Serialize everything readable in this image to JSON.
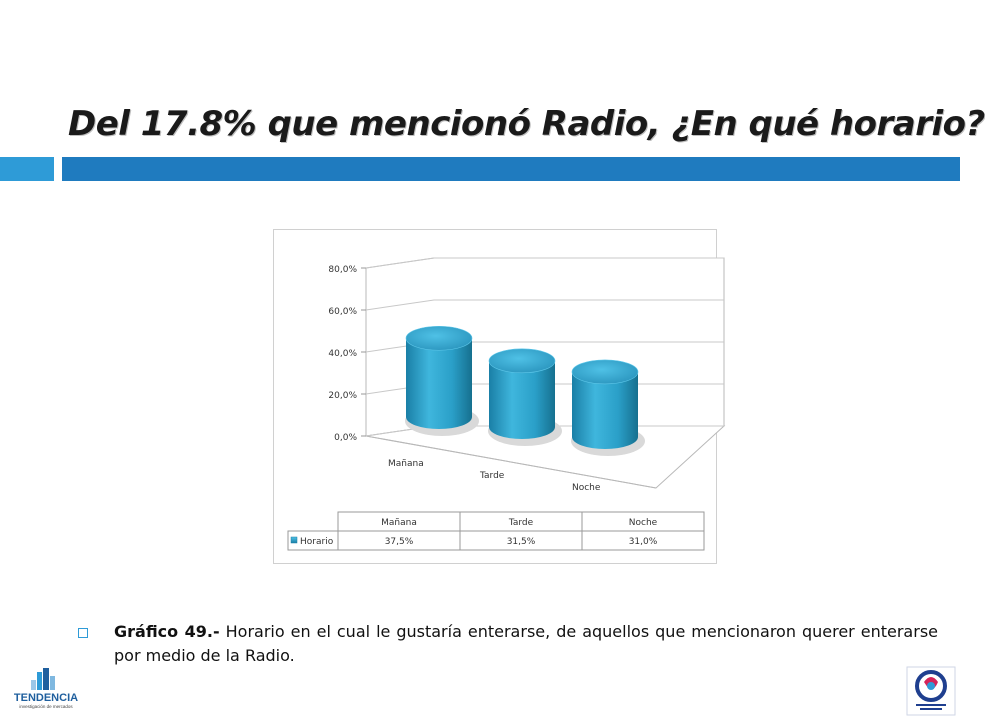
{
  "slide": {
    "title": "Del 17.8% que mencionó Radio, ¿En qué horario?",
    "caption_bold": "Gráfico 49.-",
    "caption_text": " Horario en el cual le gustaría enterarse, de aquellos que mencionaron querer enterarse por medio de la Radio."
  },
  "logos": {
    "left_brand": "TENDENCIA",
    "left_tagline": "investigación de mercados"
  },
  "colors": {
    "accent_light": "#2e9bd7",
    "accent_dark": "#1f7bbf",
    "cylinder": "#2a9fc8"
  },
  "chart_data": {
    "type": "bar",
    "style": "3d-cylinder",
    "categories": [
      "Mañana",
      "Tarde",
      "Noche"
    ],
    "series": [
      {
        "name": "Horario",
        "values": [
          37.5,
          31.5,
          31.0
        ],
        "labels": [
          "37,5%",
          "31,5%",
          "31,0%"
        ]
      }
    ],
    "y_ticks": [
      "0,0%",
      "20,0%",
      "40,0%",
      "60,0%",
      "80,0%"
    ],
    "ylim": [
      0,
      80
    ],
    "grid": true,
    "data_table": true
  }
}
